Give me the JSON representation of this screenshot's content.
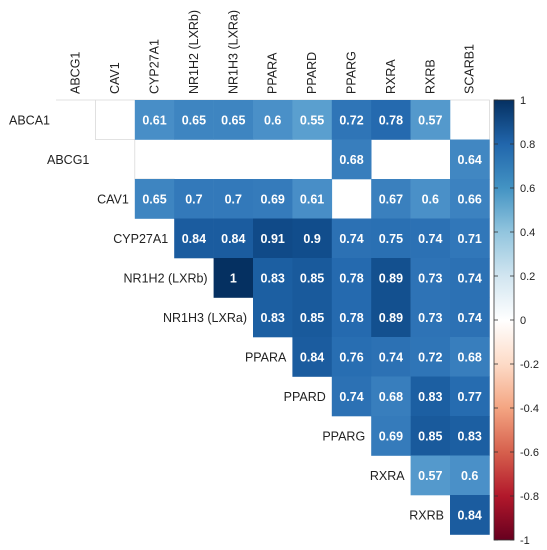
{
  "chart_data": {
    "type": "heatmap",
    "title": "",
    "variables": [
      "ABCA1",
      "ABCG1",
      "CAV1",
      "CYP27A1",
      "NR1H2 (LXRb)",
      "NR1H3 (LXRa)",
      "PPARA",
      "PPARD",
      "PPARG",
      "RXRA",
      "RXRB",
      "SCARB1"
    ],
    "matrix": [
      [
        null,
        null,
        null,
        0.61,
        0.65,
        0.65,
        0.6,
        0.55,
        0.72,
        0.78,
        0.57,
        null
      ],
      [
        null,
        null,
        null,
        null,
        null,
        null,
        null,
        null,
        0.68,
        null,
        null,
        0.64
      ],
      [
        null,
        null,
        null,
        0.65,
        0.7,
        0.7,
        0.69,
        0.61,
        null,
        0.67,
        0.6,
        0.66
      ],
      [
        null,
        null,
        null,
        null,
        0.84,
        0.84,
        0.91,
        0.9,
        0.74,
        0.75,
        0.74,
        0.71
      ],
      [
        null,
        null,
        null,
        null,
        null,
        1,
        0.83,
        0.85,
        0.78,
        0.89,
        0.73,
        0.74
      ],
      [
        null,
        null,
        null,
        null,
        null,
        null,
        0.83,
        0.85,
        0.78,
        0.89,
        0.73,
        0.74
      ],
      [
        null,
        null,
        null,
        null,
        null,
        null,
        null,
        0.84,
        0.76,
        0.74,
        0.72,
        0.68
      ],
      [
        null,
        null,
        null,
        null,
        null,
        null,
        null,
        null,
        0.74,
        0.68,
        0.83,
        0.77
      ],
      [
        null,
        null,
        null,
        null,
        null,
        null,
        null,
        null,
        null,
        0.69,
        0.85,
        0.83
      ],
      [
        null,
        null,
        null,
        null,
        null,
        null,
        null,
        null,
        null,
        null,
        0.57,
        0.6
      ],
      [
        null,
        null,
        null,
        null,
        null,
        null,
        null,
        null,
        null,
        null,
        null,
        0.84
      ]
    ],
    "color_scale": {
      "min": -1,
      "max": 1,
      "ticks": [
        "1",
        "0.8",
        "0.6",
        "0.4",
        "0.2",
        "0",
        "-0.2",
        "-0.4",
        "-0.6",
        "-0.8",
        "-1"
      ],
      "colors": {
        "negative": "#67001f",
        "mid": "#ffffff",
        "positive": "#053061"
      }
    }
  }
}
